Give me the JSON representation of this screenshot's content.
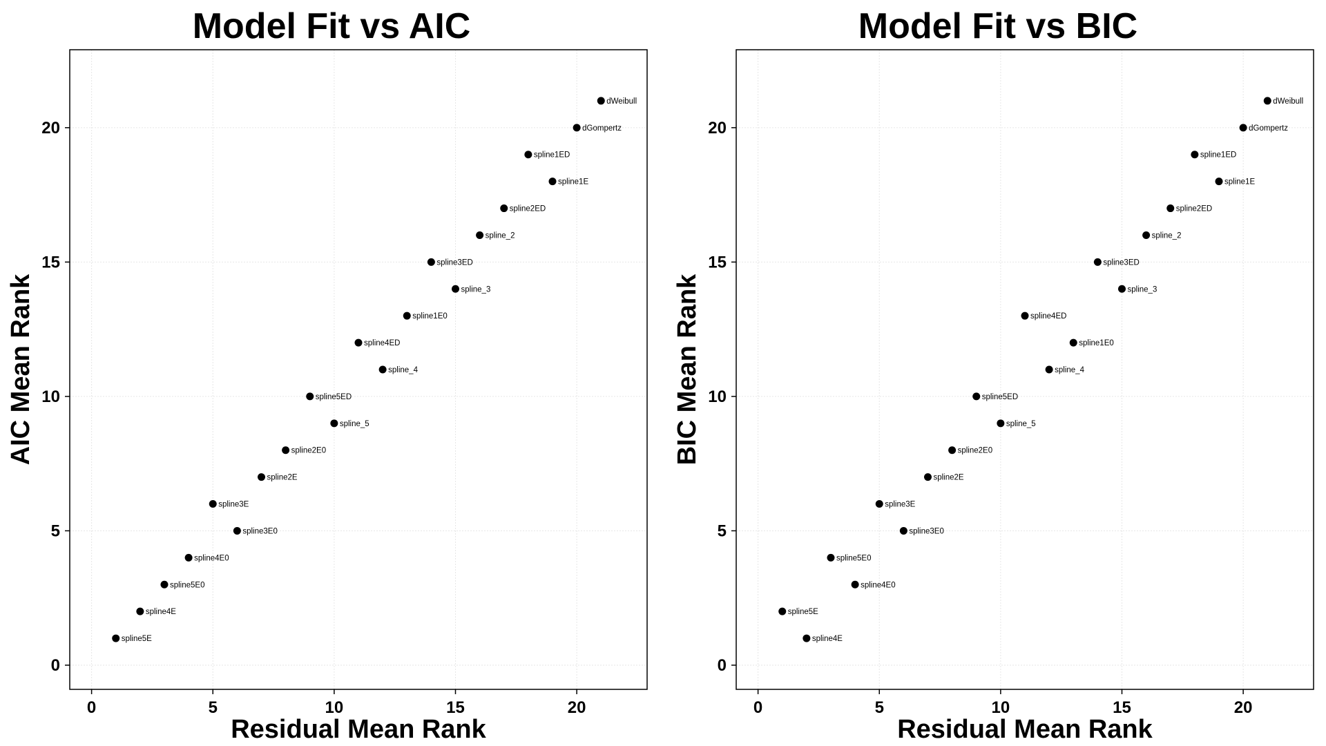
{
  "chart_data": [
    {
      "type": "scatter",
      "title": "Model Fit vs AIC",
      "xlabel": "Residual Mean Rank",
      "ylabel": "AIC Mean Rank",
      "xlim": [
        -0.9,
        22.9
      ],
      "ylim": [
        -0.9,
        22.9
      ],
      "xticks": [
        0,
        5,
        10,
        15,
        20
      ],
      "yticks": [
        0,
        5,
        10,
        15,
        20
      ],
      "grid": true,
      "points": [
        {
          "label": "spline5E",
          "x": 1,
          "y": 1
        },
        {
          "label": "spline4E",
          "x": 2,
          "y": 2
        },
        {
          "label": "spline5E0",
          "x": 3,
          "y": 3
        },
        {
          "label": "spline4E0",
          "x": 4,
          "y": 4
        },
        {
          "label": "spline3E",
          "x": 5,
          "y": 6
        },
        {
          "label": "spline3E0",
          "x": 6,
          "y": 5
        },
        {
          "label": "spline2E",
          "x": 7,
          "y": 7
        },
        {
          "label": "spline2E0",
          "x": 8,
          "y": 8
        },
        {
          "label": "spline5ED",
          "x": 9,
          "y": 10
        },
        {
          "label": "spline_5",
          "x": 10,
          "y": 9
        },
        {
          "label": "spline4ED",
          "x": 11,
          "y": 12
        },
        {
          "label": "spline_4",
          "x": 12,
          "y": 11
        },
        {
          "label": "spline1E0",
          "x": 13,
          "y": 13
        },
        {
          "label": "spline3ED",
          "x": 14,
          "y": 15
        },
        {
          "label": "spline_3",
          "x": 15,
          "y": 14
        },
        {
          "label": "spline_2",
          "x": 16,
          "y": 16
        },
        {
          "label": "spline2ED",
          "x": 17,
          "y": 17
        },
        {
          "label": "spline1ED",
          "x": 18,
          "y": 19
        },
        {
          "label": "spline1E",
          "x": 19,
          "y": 18
        },
        {
          "label": "dGompertz",
          "x": 20,
          "y": 20
        },
        {
          "label": "dWeibull",
          "x": 21,
          "y": 21
        }
      ]
    },
    {
      "type": "scatter",
      "title": "Model Fit vs BIC",
      "xlabel": "Residual Mean Rank",
      "ylabel": "BIC Mean Rank",
      "xlim": [
        -0.9,
        22.9
      ],
      "ylim": [
        -0.9,
        22.9
      ],
      "xticks": [
        0,
        5,
        10,
        15,
        20
      ],
      "yticks": [
        0,
        5,
        10,
        15,
        20
      ],
      "grid": true,
      "points": [
        {
          "label": "spline5E",
          "x": 1,
          "y": 2
        },
        {
          "label": "spline4E",
          "x": 2,
          "y": 1
        },
        {
          "label": "spline5E0",
          "x": 3,
          "y": 4
        },
        {
          "label": "spline4E0",
          "x": 4,
          "y": 3
        },
        {
          "label": "spline3E",
          "x": 5,
          "y": 6
        },
        {
          "label": "spline3E0",
          "x": 6,
          "y": 5
        },
        {
          "label": "spline2E",
          "x": 7,
          "y": 7
        },
        {
          "label": "spline2E0",
          "x": 8,
          "y": 8
        },
        {
          "label": "spline5ED",
          "x": 9,
          "y": 10
        },
        {
          "label": "spline_5",
          "x": 10,
          "y": 9
        },
        {
          "label": "spline4ED",
          "x": 11,
          "y": 13
        },
        {
          "label": "spline_4",
          "x": 12,
          "y": 11
        },
        {
          "label": "spline1E0",
          "x": 13,
          "y": 12
        },
        {
          "label": "spline3ED",
          "x": 14,
          "y": 15
        },
        {
          "label": "spline_3",
          "x": 15,
          "y": 14
        },
        {
          "label": "spline_2",
          "x": 16,
          "y": 16
        },
        {
          "label": "spline2ED",
          "x": 17,
          "y": 17
        },
        {
          "label": "spline1ED",
          "x": 18,
          "y": 19
        },
        {
          "label": "spline1E",
          "x": 19,
          "y": 18
        },
        {
          "label": "dGompertz",
          "x": 20,
          "y": 20
        },
        {
          "label": "dWeibull",
          "x": 21,
          "y": 21
        }
      ]
    }
  ]
}
